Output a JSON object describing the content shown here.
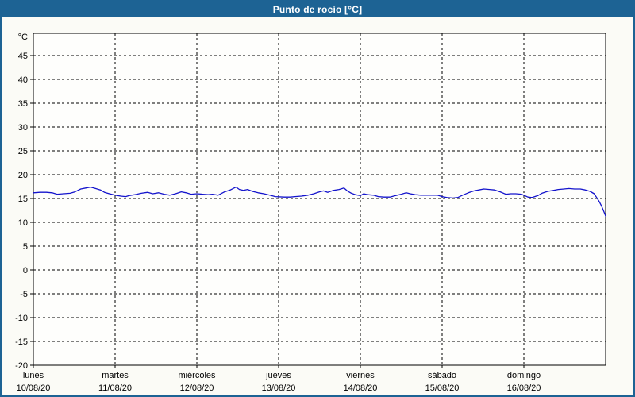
{
  "title": "Punto de rocío [°C]",
  "colors": {
    "titlebar_bg": "#1d6394",
    "titlebar_text": "#ffffff",
    "frame_border": "#1d6394",
    "chart_bg": "#fbfbf6",
    "plot_bg": "#fefefc",
    "plot_border": "#000000",
    "grid": "#000000",
    "line": "#1414cc",
    "label": "#000000"
  },
  "chart_data": {
    "type": "line",
    "title": "Punto de rocío [°C]",
    "ylabel": "°C",
    "xlabel": "",
    "ylim": [
      -20,
      50
    ],
    "yticks": [
      45,
      40,
      35,
      30,
      25,
      20,
      15,
      10,
      5,
      0,
      -5,
      -10,
      -15,
      -20
    ],
    "grid": "dashed",
    "legend_position": "none",
    "x_days": [
      {
        "name": "lunes",
        "date": "10/08/20"
      },
      {
        "name": "martes",
        "date": "11/08/20"
      },
      {
        "name": "miércoles",
        "date": "12/08/20"
      },
      {
        "name": "jueves",
        "date": "13/08/20"
      },
      {
        "name": "viernes",
        "date": "14/08/20"
      },
      {
        "name": "sábado",
        "date": "15/08/20"
      },
      {
        "name": "domingo",
        "date": "16/08/20"
      }
    ],
    "xlim_days": [
      0,
      7
    ],
    "series": [
      {
        "name": "Punto de rocío",
        "color": "#1414cc",
        "points": [
          [
            0.0,
            16.2
          ],
          [
            0.08,
            16.3
          ],
          [
            0.16,
            16.3
          ],
          [
            0.23,
            16.2
          ],
          [
            0.29,
            15.9
          ],
          [
            0.37,
            16.0
          ],
          [
            0.45,
            16.1
          ],
          [
            0.51,
            16.4
          ],
          [
            0.58,
            17.0
          ],
          [
            0.64,
            17.2
          ],
          [
            0.7,
            17.4
          ],
          [
            0.76,
            17.1
          ],
          [
            0.82,
            16.8
          ],
          [
            0.87,
            16.3
          ],
          [
            0.93,
            16.0
          ],
          [
            1.0,
            15.7
          ],
          [
            1.07,
            15.5
          ],
          [
            1.13,
            15.4
          ],
          [
            1.17,
            15.6
          ],
          [
            1.24,
            15.8
          ],
          [
            1.32,
            16.1
          ],
          [
            1.4,
            16.3
          ],
          [
            1.46,
            16.0
          ],
          [
            1.53,
            16.2
          ],
          [
            1.6,
            15.9
          ],
          [
            1.67,
            15.7
          ],
          [
            1.74,
            16.0
          ],
          [
            1.81,
            16.4
          ],
          [
            1.87,
            16.2
          ],
          [
            1.93,
            15.9
          ],
          [
            2.0,
            16.0
          ],
          [
            2.07,
            15.9
          ],
          [
            2.14,
            15.8
          ],
          [
            2.19,
            15.9
          ],
          [
            2.26,
            15.7
          ],
          [
            2.34,
            16.4
          ],
          [
            2.41,
            16.8
          ],
          [
            2.48,
            17.4
          ],
          [
            2.52,
            16.9
          ],
          [
            2.57,
            16.7
          ],
          [
            2.62,
            16.9
          ],
          [
            2.68,
            16.5
          ],
          [
            2.75,
            16.2
          ],
          [
            2.82,
            16.0
          ],
          [
            2.89,
            15.7
          ],
          [
            2.96,
            15.4
          ],
          [
            3.07,
            15.3
          ],
          [
            3.14,
            15.3
          ],
          [
            3.2,
            15.4
          ],
          [
            3.28,
            15.5
          ],
          [
            3.36,
            15.7
          ],
          [
            3.43,
            16.0
          ],
          [
            3.5,
            16.4
          ],
          [
            3.55,
            16.6
          ],
          [
            3.6,
            16.3
          ],
          [
            3.67,
            16.7
          ],
          [
            3.74,
            16.9
          ],
          [
            3.8,
            17.2
          ],
          [
            3.84,
            16.6
          ],
          [
            3.89,
            16.1
          ],
          [
            3.94,
            15.8
          ],
          [
            4.0,
            15.6
          ],
          [
            4.04,
            16.0
          ],
          [
            4.09,
            15.8
          ],
          [
            4.16,
            15.7
          ],
          [
            4.22,
            15.4
          ],
          [
            4.29,
            15.3
          ],
          [
            4.36,
            15.3
          ],
          [
            4.43,
            15.6
          ],
          [
            4.5,
            15.9
          ],
          [
            4.56,
            16.2
          ],
          [
            4.61,
            16.0
          ],
          [
            4.67,
            15.8
          ],
          [
            4.74,
            15.7
          ],
          [
            4.82,
            15.7
          ],
          [
            4.88,
            15.7
          ],
          [
            4.94,
            15.7
          ],
          [
            5.0,
            15.4
          ],
          [
            5.06,
            15.2
          ],
          [
            5.13,
            15.1
          ],
          [
            5.19,
            15.2
          ],
          [
            5.25,
            15.7
          ],
          [
            5.32,
            16.2
          ],
          [
            5.39,
            16.6
          ],
          [
            5.45,
            16.8
          ],
          [
            5.51,
            17.0
          ],
          [
            5.58,
            16.9
          ],
          [
            5.64,
            16.8
          ],
          [
            5.71,
            16.4
          ],
          [
            5.78,
            15.9
          ],
          [
            5.84,
            16.0
          ],
          [
            5.9,
            16.0
          ],
          [
            5.97,
            15.9
          ],
          [
            6.05,
            15.3
          ],
          [
            6.1,
            15.2
          ],
          [
            6.17,
            15.6
          ],
          [
            6.22,
            16.1
          ],
          [
            6.29,
            16.5
          ],
          [
            6.36,
            16.7
          ],
          [
            6.42,
            16.9
          ],
          [
            6.49,
            17.0
          ],
          [
            6.55,
            17.1
          ],
          [
            6.62,
            17.0
          ],
          [
            6.69,
            17.0
          ],
          [
            6.75,
            16.8
          ],
          [
            6.81,
            16.5
          ],
          [
            6.86,
            16.0
          ],
          [
            6.89,
            15.2
          ],
          [
            6.92,
            14.4
          ],
          [
            6.95,
            13.4
          ],
          [
            6.98,
            12.2
          ],
          [
            7.0,
            11.3
          ]
        ]
      }
    ]
  }
}
